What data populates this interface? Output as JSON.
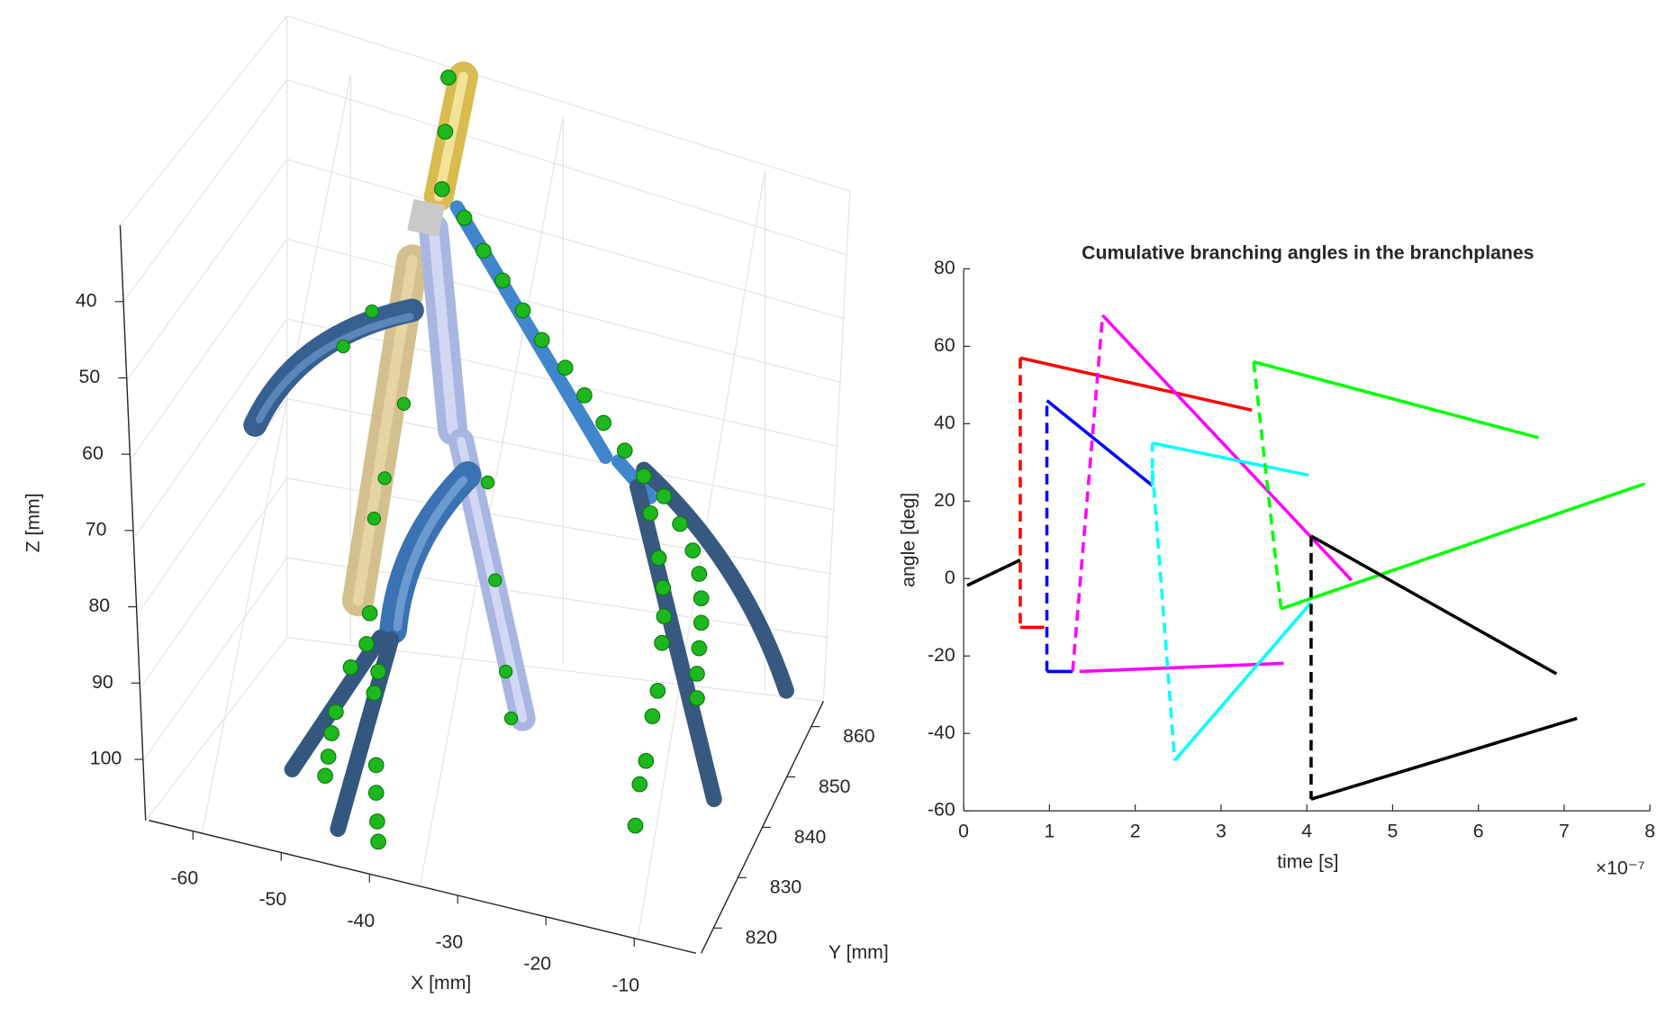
{
  "chart_data": [
    {
      "type": "3d",
      "xlabel": "X [mm]",
      "ylabel": "Y [mm]",
      "zlabel": "Z [mm]",
      "xlim": [
        -65,
        -3
      ],
      "xticks": [
        -60,
        -50,
        -40,
        -30,
        -20,
        -10
      ],
      "ylim": [
        815,
        865
      ],
      "yticks": [
        820,
        830,
        840,
        850,
        860
      ],
      "zlim": [
        30,
        108
      ],
      "zticks": [
        40,
        50,
        60,
        70,
        80,
        90,
        100
      ]
    },
    {
      "type": "line",
      "title": "Cumulative branching angles in the branchplanes",
      "xlabel": "time [s]",
      "ylabel": "angle [deg]",
      "x_exponent_label": "×10⁻⁷",
      "xlim": [
        0,
        8
      ],
      "xticks": [
        0,
        1,
        2,
        3,
        4,
        5,
        6,
        7,
        8
      ],
      "ylim": [
        -60,
        80
      ],
      "yticks": [
        -60,
        -40,
        -20,
        0,
        20,
        40,
        60,
        80
      ],
      "series": [
        {
          "color": "#000000",
          "dashed": false,
          "x": [
            0.04,
            0.66
          ],
          "values": [
            -1.8,
            4.8
          ]
        },
        {
          "color": "#ff0000",
          "dashed": true,
          "x": [
            0.66,
            0.66
          ],
          "values": [
            57,
            -12.6
          ]
        },
        {
          "color": "#ff0000",
          "dashed": false,
          "x": [
            0.66,
            0.94,
            null,
            0.66,
            3.36
          ],
          "values": [
            -12.6,
            -12.6,
            null,
            57,
            43.5
          ]
        },
        {
          "color": "#0000ff",
          "dashed": true,
          "x": [
            0.97,
            0.97
          ],
          "values": [
            -24,
            46
          ]
        },
        {
          "color": "#0000ff",
          "dashed": false,
          "x": [
            0.97,
            1.27,
            null,
            0.97,
            2.2
          ],
          "values": [
            -24,
            -24,
            null,
            46,
            24
          ]
        },
        {
          "color": "#ff00ff",
          "dashed": true,
          "x": [
            1.27,
            1.62
          ],
          "values": [
            -24,
            68
          ]
        },
        {
          "color": "#ff00ff",
          "dashed": false,
          "x": [
            1.62,
            4.52,
            null,
            1.35,
            3.73
          ],
          "values": [
            68,
            -0.4,
            null,
            -24,
            -21.9
          ]
        },
        {
          "color": "#00ffff",
          "dashed": true,
          "x": [
            2.2,
            2.2,
            null,
            2.2,
            2.46
          ],
          "values": [
            24,
            35,
            null,
            28,
            -47
          ]
        },
        {
          "color": "#00ffff",
          "dashed": false,
          "x": [
            2.2,
            4.02,
            null,
            2.46,
            4.05
          ],
          "values": [
            35,
            26.7,
            null,
            -47,
            -6.2
          ]
        },
        {
          "color": "#00ff00",
          "dashed": true,
          "x": [
            3.38,
            3.7
          ],
          "values": [
            56,
            -7.8
          ]
        },
        {
          "color": "#00ff00",
          "dashed": false,
          "x": [
            3.38,
            6.7,
            null,
            3.7,
            7.94
          ],
          "values": [
            56,
            36.4,
            null,
            -7.8,
            24.5
          ]
        },
        {
          "color": "#000000",
          "dashed": true,
          "x": [
            4.05,
            4.05
          ],
          "values": [
            11,
            -57
          ]
        },
        {
          "color": "#000000",
          "dashed": false,
          "x": [
            4.05,
            6.91,
            null,
            4.05,
            7.15
          ],
          "values": [
            11,
            -24.6,
            null,
            -57,
            -36.1
          ]
        }
      ]
    }
  ]
}
